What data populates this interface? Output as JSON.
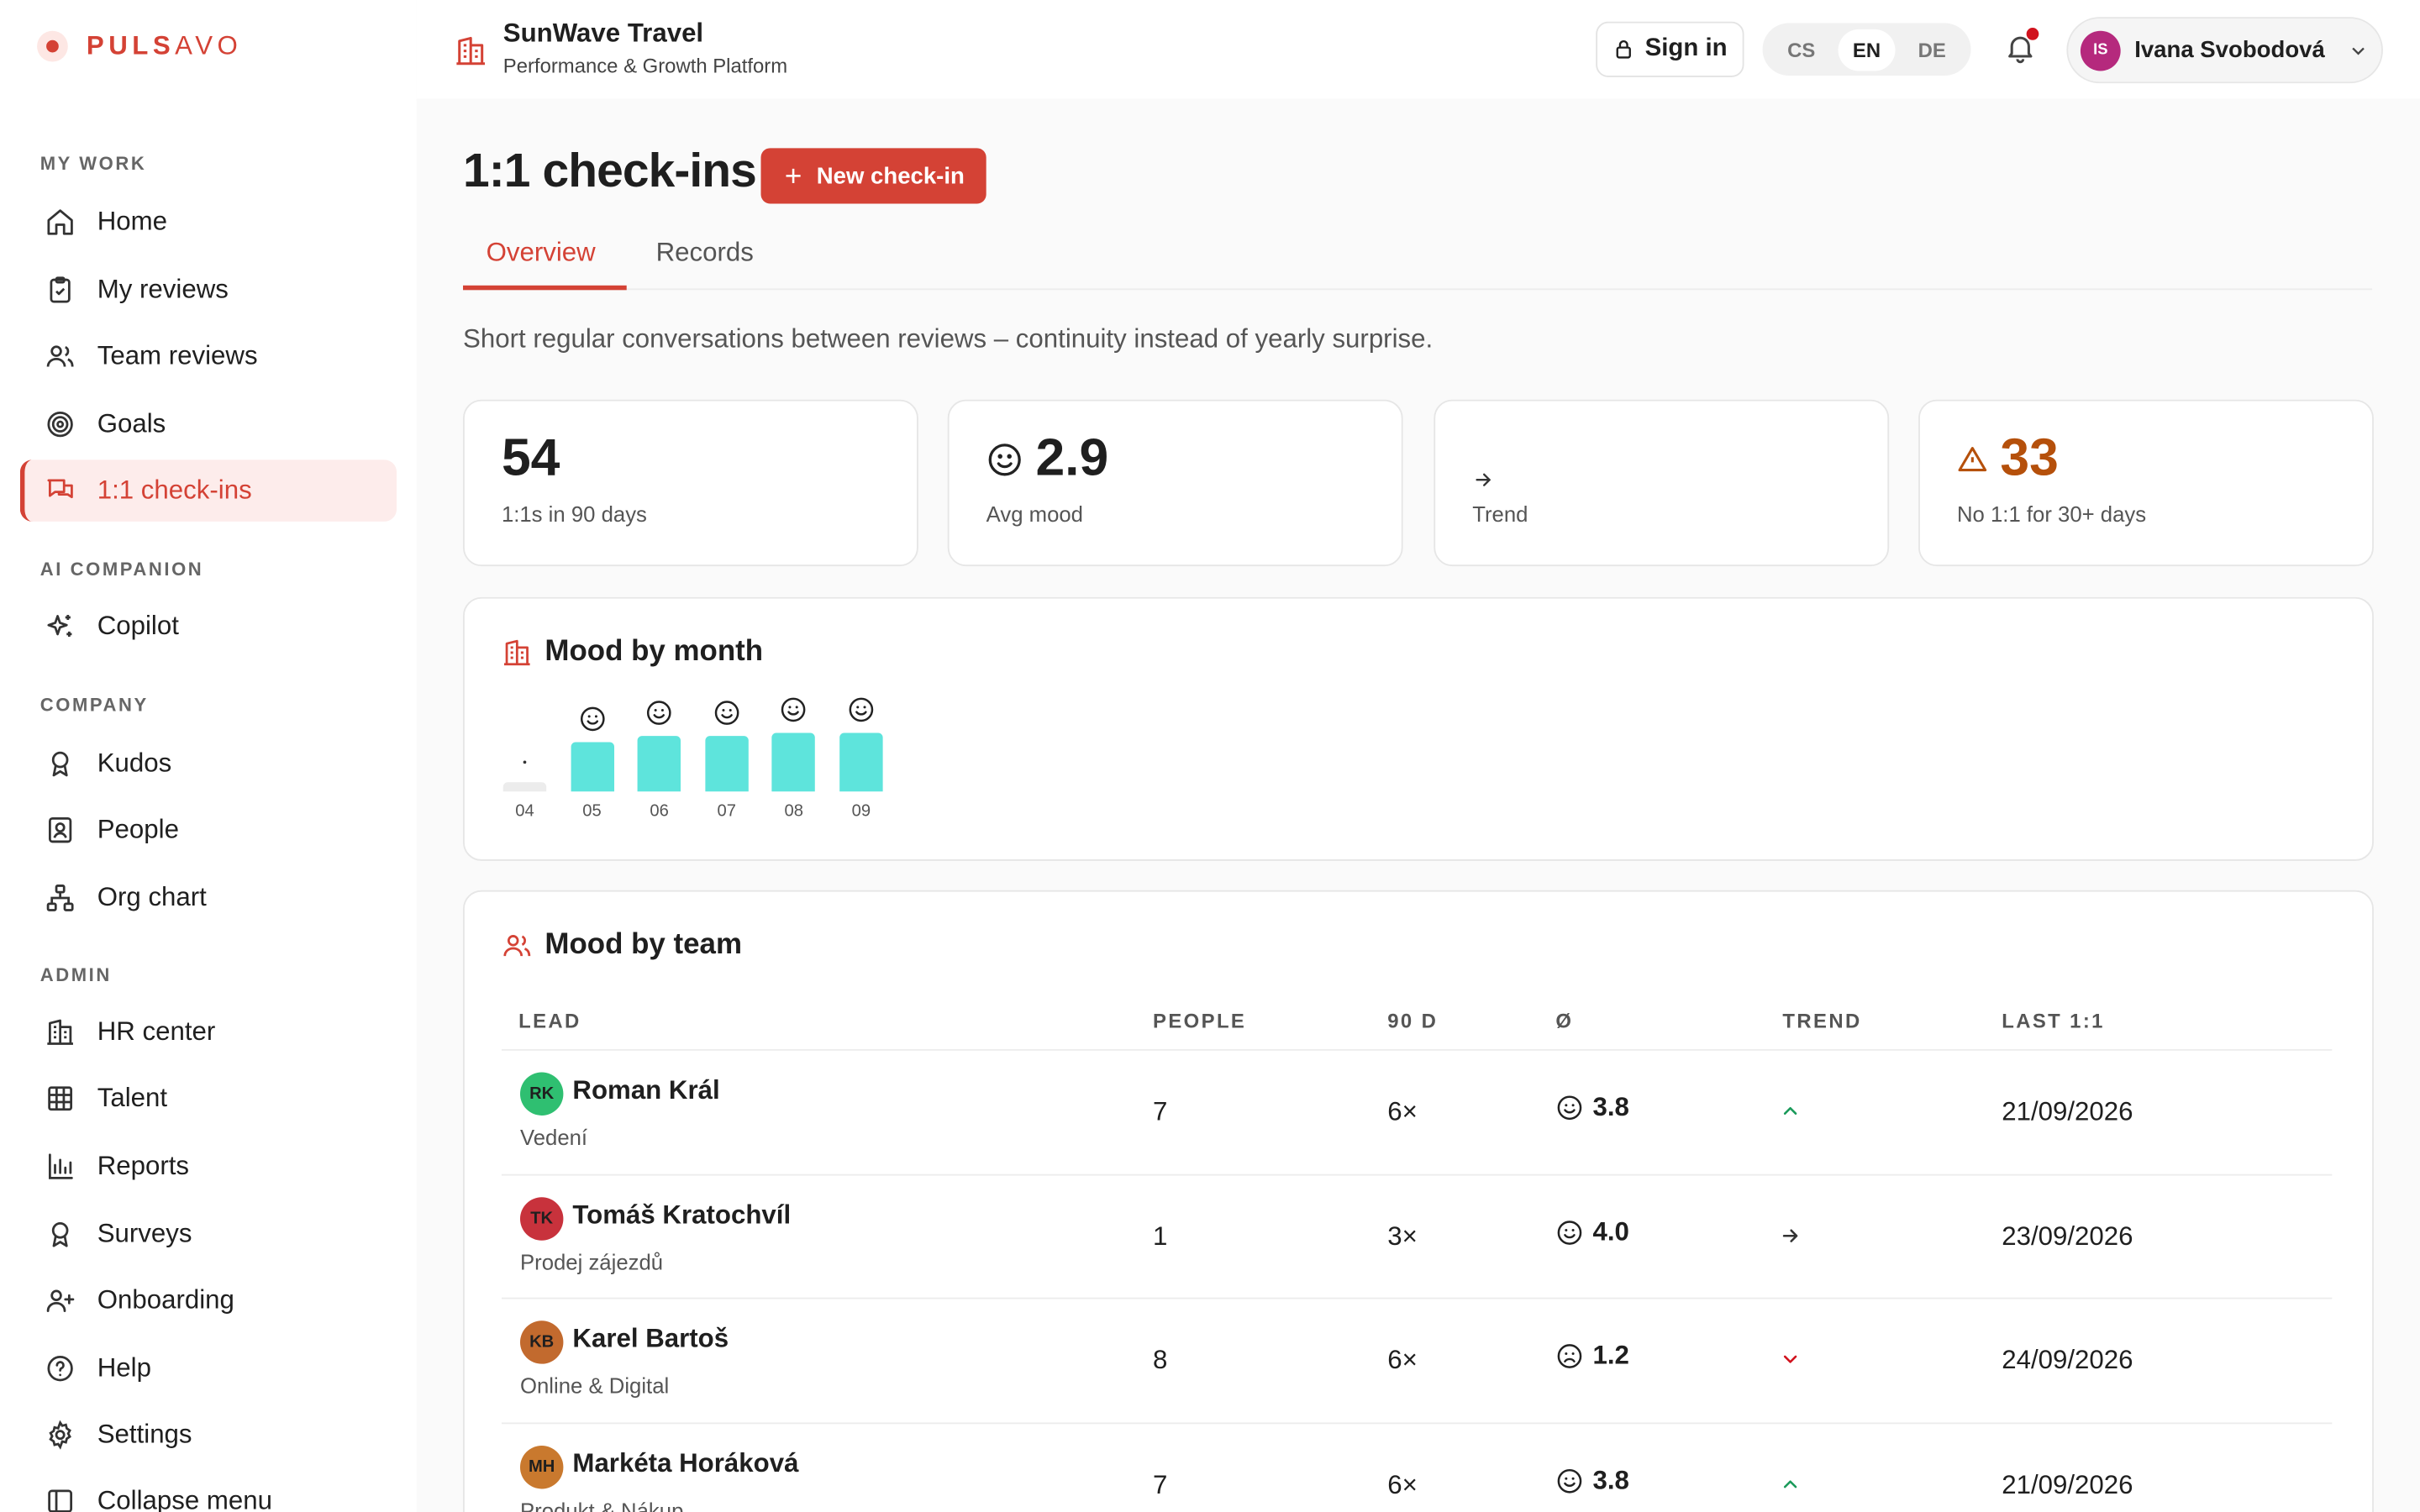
{
  "brand": {
    "name_bold": "PULS",
    "name_light": "AVO"
  },
  "org": {
    "name": "SunWave Travel",
    "subtitle": "Performance & Growth Platform"
  },
  "header": {
    "sign_in": "Sign in",
    "languages": [
      "CS",
      "EN",
      "DE"
    ],
    "selected_language": "EN",
    "user": {
      "initials": "IS",
      "name": "Ivana Svobodová"
    }
  },
  "sidebar": {
    "sections": {
      "my_work": "MY WORK",
      "ai": "AI COMPANION",
      "company": "COMPANY",
      "admin": "ADMIN"
    },
    "items": [
      {
        "label": "Home",
        "icon": "home-icon"
      },
      {
        "label": "My reviews",
        "icon": "clipboard-icon"
      },
      {
        "label": "Team reviews",
        "icon": "users-icon"
      },
      {
        "label": "Goals",
        "icon": "target-icon"
      },
      {
        "label": "1:1 check-ins",
        "icon": "chat-icon",
        "active": true
      },
      {
        "label": "Copilot",
        "icon": "sparkles-icon"
      },
      {
        "label": "Kudos",
        "icon": "award-icon"
      },
      {
        "label": "People",
        "icon": "id-card-icon"
      },
      {
        "label": "Org chart",
        "icon": "org-chart-icon"
      },
      {
        "label": "HR center",
        "icon": "building-icon"
      },
      {
        "label": "Talent",
        "icon": "grid-icon"
      },
      {
        "label": "Reports",
        "icon": "bar-chart-icon"
      },
      {
        "label": "Surveys",
        "icon": "award-icon"
      },
      {
        "label": "Onboarding",
        "icon": "user-plus-icon"
      },
      {
        "label": "Help",
        "icon": "help-circle-icon"
      },
      {
        "label": "Settings",
        "icon": "gear-icon"
      },
      {
        "label": "Collapse menu",
        "icon": "collapse-icon"
      }
    ]
  },
  "page": {
    "title": "1:1 check-ins",
    "new_button": "New check-in",
    "tabs": [
      "Overview",
      "Records"
    ],
    "active_tab": "Overview",
    "description": "Short regular conversations between reviews – continuity instead of yearly surprise."
  },
  "stats": [
    {
      "value": "54",
      "label": "1:1s in 90 days"
    },
    {
      "value": "2.9",
      "label": "Avg mood",
      "icon": "smile-icon"
    },
    {
      "value": "",
      "label": "Trend",
      "icon": "arrow-right-icon"
    },
    {
      "value": "33",
      "label": "No 1:1 for 30+ days",
      "icon": "warning-icon",
      "color": "#b5500b"
    }
  ],
  "mood_chart": {
    "title": "Mood by month",
    "bar_color": "#5ee4dc",
    "chart_data": {
      "type": "bar",
      "categories": [
        "04",
        "05",
        "06",
        "07",
        "08",
        "09"
      ],
      "values": [
        null,
        3.2,
        3.6,
        3.6,
        3.8,
        3.8
      ],
      "face": [
        "dot",
        "smile",
        "smile",
        "smile",
        "smile",
        "smile"
      ]
    }
  },
  "team_table": {
    "title": "Mood by team",
    "columns": [
      "LEAD",
      "PEOPLE",
      "90 D",
      "Ø",
      "TREND",
      "LAST 1:1"
    ],
    "rows": [
      {
        "initials": "RK",
        "avatar_color": "#2fbf71",
        "name": "Roman Král",
        "dept": "Vedení",
        "people": "7",
        "count": "6×",
        "mood": "3.8",
        "mood_icon": "smile-icon",
        "trend": "up",
        "last": "21/09/2026"
      },
      {
        "initials": "TK",
        "avatar_color": "#c8323c",
        "name": "Tomáš Kratochvíl",
        "dept": "Prodej zájezdů",
        "people": "1",
        "count": "3×",
        "mood": "4.0",
        "mood_icon": "smile-icon",
        "trend": "flat",
        "last": "23/09/2026"
      },
      {
        "initials": "KB",
        "avatar_color": "#c26a2e",
        "name": "Karel Bartoš",
        "dept": "Online & Digital",
        "people": "8",
        "count": "6×",
        "mood": "1.2",
        "mood_icon": "frown-icon",
        "trend": "down",
        "last": "24/09/2026"
      },
      {
        "initials": "MH",
        "avatar_color": "#c9792e",
        "name": "Markéta Horáková",
        "dept": "Produkt & Nákup",
        "people": "7",
        "count": "6×",
        "mood": "3.8",
        "mood_icon": "smile-icon",
        "trend": "up",
        "last": "21/09/2026"
      }
    ]
  },
  "colors": {
    "accent": "#d44235",
    "trend_up": "#1a9a5a",
    "trend_down": "#d1121d",
    "warning": "#b5500b"
  }
}
